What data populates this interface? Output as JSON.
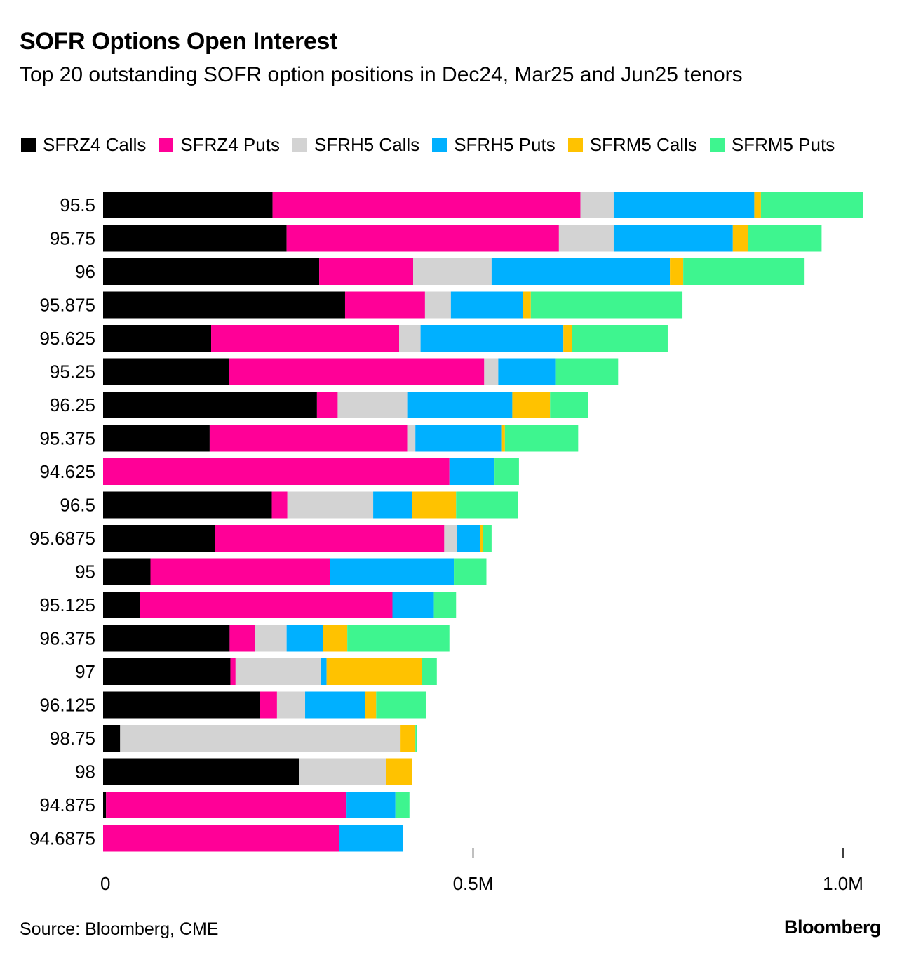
{
  "title": "SOFR Options Open Interest",
  "subtitle": "Top 20 outstanding SOFR option positions in Dec24, Mar25 and Jun25 tenors",
  "source": "Source: Bloomberg, CME",
  "brand": "Bloomberg",
  "chart_data": {
    "type": "bar",
    "orientation": "horizontal",
    "stacked": true,
    "categories": [
      "95.5",
      "95.75",
      "96",
      "95.875",
      "95.625",
      "95.25",
      "96.25",
      "95.375",
      "94.625",
      "96.5",
      "95.6875",
      "95",
      "95.125",
      "96.375",
      "97",
      "96.125",
      "98.75",
      "98",
      "94.875",
      "94.6875"
    ],
    "series": [
      {
        "name": "SFRZ4 Calls",
        "color": "#000000",
        "values": [
          229000,
          248000,
          292000,
          327000,
          146000,
          170000,
          289000,
          144000,
          0,
          228000,
          151000,
          64000,
          50000,
          171000,
          172000,
          212000,
          23000,
          265000,
          4000,
          0
        ]
      },
      {
        "name": "SFRZ4 Puts",
        "color": "#ff0097",
        "values": [
          416000,
          368000,
          127000,
          108000,
          254000,
          345000,
          28000,
          267000,
          468000,
          21000,
          310000,
          243000,
          341000,
          34000,
          7000,
          23000,
          0,
          0,
          325000,
          319000
        ]
      },
      {
        "name": "SFRH5 Calls",
        "color": "#d3d3d3",
        "values": [
          45000,
          74000,
          106000,
          35000,
          29000,
          19000,
          94000,
          11000,
          0,
          116000,
          17000,
          0,
          0,
          43000,
          115000,
          38000,
          379000,
          117000,
          0,
          0
        ]
      },
      {
        "name": "SFRH5 Puts",
        "color": "#00b0ff",
        "values": [
          190000,
          161000,
          241000,
          97000,
          193000,
          77000,
          142000,
          117000,
          61000,
          53000,
          31000,
          167000,
          56000,
          49000,
          8000,
          81000,
          0,
          0,
          66000,
          86000
        ]
      },
      {
        "name": "SFRM5 Calls",
        "color": "#ffc200",
        "values": [
          9000,
          21000,
          18000,
          11000,
          12000,
          0,
          51000,
          4000,
          0,
          59000,
          4000,
          0,
          0,
          33000,
          129000,
          15000,
          20000,
          36000,
          0,
          0
        ]
      },
      {
        "name": "SFRM5 Puts",
        "color": "#3ef58f",
        "values": [
          138000,
          99000,
          164000,
          205000,
          129000,
          85000,
          51000,
          99000,
          33000,
          84000,
          12000,
          44000,
          30000,
          138000,
          20000,
          67000,
          2000,
          0,
          19000,
          0
        ]
      }
    ],
    "xlim": [
      0,
      1050000
    ],
    "xticks": [
      0,
      500000,
      1000000
    ],
    "xtick_labels": [
      "0",
      "0.5M",
      "1.0M"
    ],
    "xlabel": "",
    "ylabel": "",
    "legend_position": "top"
  }
}
